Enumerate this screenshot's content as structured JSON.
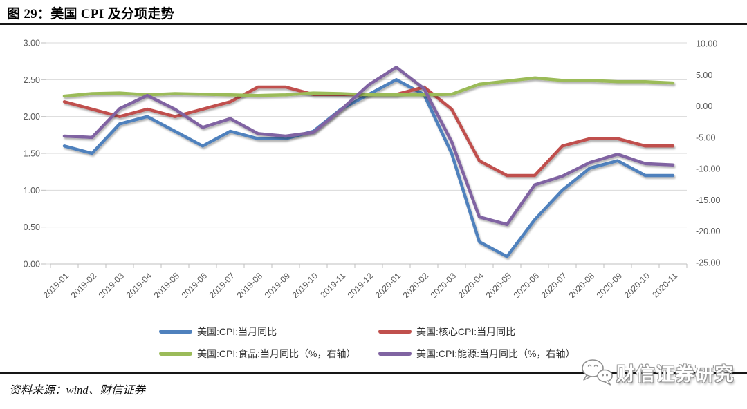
{
  "page": {
    "title": "图 29：美国 CPI 及分项走势",
    "source": "资料来源：wind、财信证券",
    "watermark": "财信证券研究"
  },
  "colors": {
    "cpi_blue": "#4F81BD",
    "core_red": "#C0504D",
    "food_green": "#9BBB59",
    "energy_purple": "#8064A2",
    "gridline": "#D9D9D9",
    "axis_text": "#595959",
    "axis_line": "#BFBFBF",
    "rule_black": "#161616"
  },
  "chart_data": {
    "type": "line",
    "title": "美国 CPI 及分项走势",
    "grid": true,
    "legend_position": "bottom",
    "x": [
      "2019-01",
      "2019-02",
      "2019-03",
      "2019-04",
      "2019-05",
      "2019-06",
      "2019-07",
      "2019-08",
      "2019-09",
      "2019-10",
      "2019-11",
      "2019-12",
      "2020-01",
      "2020-02",
      "2020-03",
      "2020-04",
      "2020-05",
      "2020-06",
      "2020-07",
      "2020-08",
      "2020-09",
      "2020-10",
      "2020-11"
    ],
    "left_axis": {
      "min": 0,
      "max": 3,
      "step": 0.5,
      "ticks": [
        "3.00",
        "2.50",
        "2.00",
        "1.50",
        "1.00",
        "0.50",
        "0.00"
      ]
    },
    "right_axis": {
      "min": -25,
      "max": 10,
      "step": 5,
      "ticks": [
        "10.00",
        "5.00",
        "0.00",
        "-5.00",
        "-10.00",
        "-15.00",
        "-20.00",
        "-25.00"
      ]
    },
    "series": [
      {
        "name": "美国:CPI:当月同比",
        "axis": "left",
        "color": "#4F81BD",
        "values": [
          1.6,
          1.5,
          1.9,
          2.0,
          1.8,
          1.6,
          1.8,
          1.7,
          1.7,
          1.8,
          2.1,
          2.3,
          2.5,
          2.3,
          1.5,
          0.3,
          0.1,
          0.6,
          1.0,
          1.3,
          1.4,
          1.2,
          1.2
        ]
      },
      {
        "name": "美国:核心CPI:当月同比",
        "axis": "left",
        "color": "#C0504D",
        "values": [
          2.2,
          2.1,
          2.0,
          2.1,
          2.0,
          2.1,
          2.2,
          2.4,
          2.4,
          2.3,
          2.3,
          2.3,
          2.3,
          2.4,
          2.1,
          1.4,
          1.2,
          1.2,
          1.6,
          1.7,
          1.7,
          1.6,
          1.6
        ]
      },
      {
        "name": "美国:CPI:食品:当月同比（%，右轴）",
        "axis": "right",
        "color": "#9BBB59",
        "values": [
          1.6,
          2.0,
          2.1,
          1.8,
          2.0,
          1.9,
          1.8,
          1.7,
          1.8,
          2.1,
          2.0,
          1.8,
          1.8,
          1.8,
          1.9,
          3.5,
          4.0,
          4.5,
          4.1,
          4.1,
          3.9,
          3.9,
          3.7
        ]
      },
      {
        "name": "美国:CPI:能源:当月同比（%，右轴）",
        "axis": "right",
        "color": "#8064A2",
        "values": [
          -4.8,
          -5.0,
          -0.4,
          1.7,
          -0.5,
          -3.4,
          -2.0,
          -4.4,
          -4.8,
          -4.2,
          -0.6,
          3.4,
          6.2,
          2.8,
          -5.7,
          -17.7,
          -18.9,
          -12.6,
          -11.2,
          -9.0,
          -7.7,
          -9.2,
          -9.4
        ]
      }
    ]
  }
}
